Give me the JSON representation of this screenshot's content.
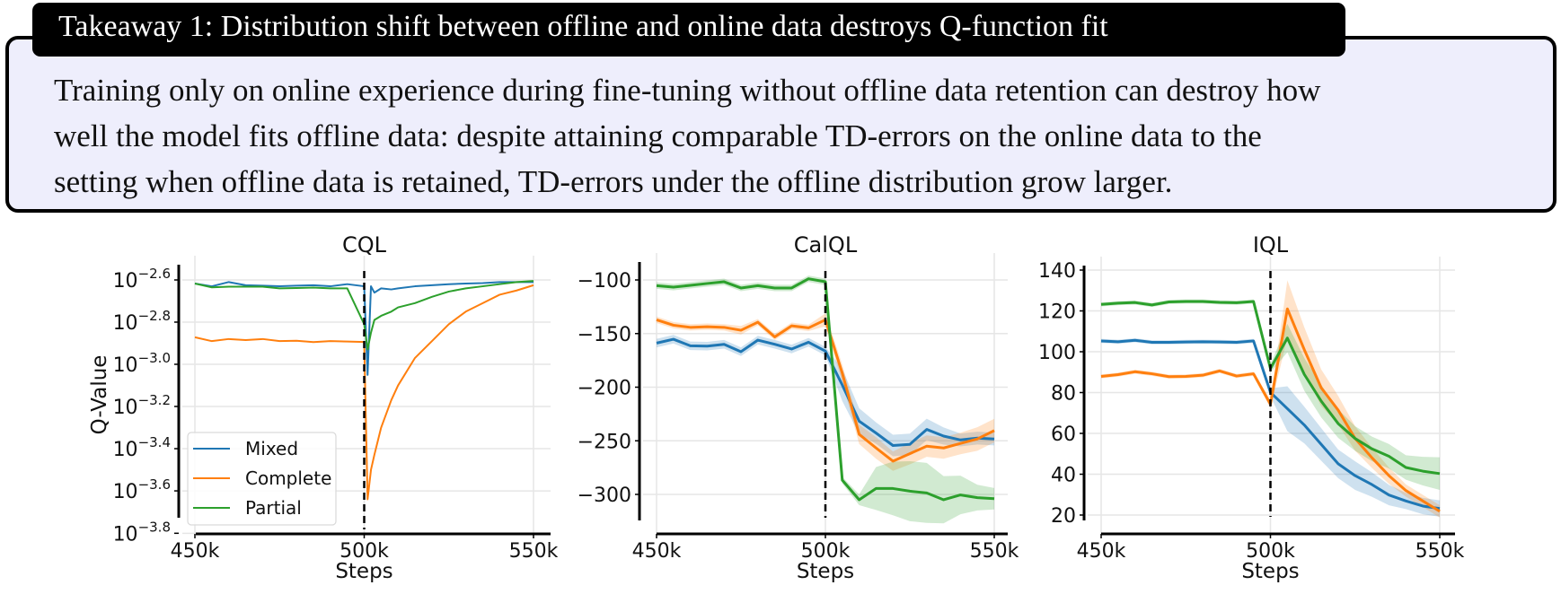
{
  "takeaway": {
    "title": "Takeaway 1: Distribution shift between offline and online data destroys Q-function fit",
    "lines": [
      "Training only on online experience during fine-tuning without offline data retention can destroy how",
      "well the model fits offline data: despite attaining comparable TD-errors on the online data to the",
      "setting when offline data is retained, TD-errors under the offline distribution grow larger."
    ],
    "background": "#eeeefc"
  },
  "colors": {
    "Mixed": "#1f77b4",
    "Complete": "#ff7f0e",
    "Partial": "#2ca02c"
  },
  "chart_data": [
    {
      "type": "line",
      "title": "CQL",
      "xlabel": "Steps",
      "ylabel": "Q-Value",
      "yscale": "log",
      "grid": true,
      "legend": {
        "placement": "lower-left",
        "entries": [
          "Mixed",
          "Complete",
          "Partial"
        ]
      },
      "vline": 500000,
      "xlim": [
        445000,
        555000
      ],
      "ylim": [
        0.000158,
        0.00295
      ],
      "xticks": [
        450000,
        500000,
        550000
      ],
      "xtick_labels": [
        "450k",
        "500k",
        "550k"
      ],
      "yticks": [
        0.002512,
        0.001585,
        0.001,
        0.000631,
        0.000398,
        0.000251,
        0.000158
      ],
      "ytick_labels": [
        {
          "base": "10",
          "exp": "−2.6"
        },
        {
          "base": "10",
          "exp": "−2.8"
        },
        {
          "base": "10",
          "exp": "−3.0"
        },
        {
          "base": "10",
          "exp": "−3.2"
        },
        {
          "base": "10",
          "exp": "−3.4"
        },
        {
          "base": "10",
          "exp": "−3.6"
        },
        {
          "base": "10",
          "exp": "−3.8"
        }
      ],
      "x": [
        450000,
        455000,
        460000,
        465000,
        470000,
        475000,
        480000,
        485000,
        490000,
        495000,
        500000,
        501000,
        502000,
        503000,
        505000,
        508000,
        510000,
        515000,
        520000,
        525000,
        530000,
        535000,
        540000,
        545000,
        550000
      ],
      "series": [
        {
          "name": "Mixed",
          "values": [
            0.002415,
            0.002344,
            0.002455,
            0.002371,
            0.00236,
            0.002344,
            0.00236,
            0.002371,
            0.002344,
            0.002399,
            0.002344,
            0.000891,
            0.002344,
            0.002188,
            0.002291,
            0.002265,
            0.002291,
            0.002344,
            0.002371,
            0.002399,
            0.002415,
            0.002427,
            0.002455,
            0.002455,
            0.002455
          ]
        },
        {
          "name": "Complete",
          "values": [
            0.001343,
            0.001288,
            0.001318,
            0.001303,
            0.001318,
            0.001288,
            0.001294,
            0.001274,
            0.001288,
            0.001282,
            0.001276,
            0.000229,
            0.000316,
            0.000372,
            0.000501,
            0.000676,
            0.000794,
            0.001072,
            0.001288,
            0.001549,
            0.001778,
            0.00195,
            0.002138,
            0.002239,
            0.002371
          ]
        },
        {
          "name": "Partial",
          "values": [
            0.002415,
            0.002317,
            0.002333,
            0.002333,
            0.002333,
            0.002291,
            0.002301,
            0.002312,
            0.002291,
            0.002291,
            0.001549,
            0.001175,
            0.001413,
            0.001622,
            0.001698,
            0.001778,
            0.001862,
            0.00195,
            0.002089,
            0.002213,
            0.002291,
            0.002344,
            0.002399,
            0.002455,
            0.002483
          ]
        }
      ]
    },
    {
      "type": "line",
      "title": "CalQL",
      "xlabel": "Steps",
      "ylabel": "",
      "grid": true,
      "vline": 500000,
      "xlim": [
        445000,
        555000
      ],
      "ylim": [
        -324,
        -84
      ],
      "xticks": [
        450000,
        500000,
        550000
      ],
      "xtick_labels": [
        "450k",
        "500k",
        "550k"
      ],
      "yticks": [
        -100,
        -150,
        -200,
        -250,
        -300
      ],
      "ytick_labels": [
        "−100",
        "−150",
        "−200",
        "−250",
        "−300"
      ],
      "x": [
        450000,
        455000,
        460000,
        465000,
        470000,
        475000,
        480000,
        485000,
        490000,
        495000,
        500000,
        505000,
        510000,
        515000,
        520000,
        525000,
        530000,
        535000,
        540000,
        545000,
        550000
      ],
      "series": [
        {
          "name": "Mixed",
          "values": [
            -158.9,
            -155.3,
            -161.4,
            -161.7,
            -160,
            -166.9,
            -156.1,
            -160,
            -164.4,
            -158.1,
            -166.4,
            -198,
            -231.7,
            -242.8,
            -254.4,
            -253.3,
            -239.4,
            -245.6,
            -249.2,
            -247.5,
            -248.3
          ],
          "band": [
            4,
            4,
            4,
            4,
            4,
            4,
            4,
            4,
            4,
            4,
            4,
            15,
            12,
            10,
            10,
            10,
            10,
            8,
            6,
            6,
            6
          ]
        },
        {
          "name": "Complete",
          "values": [
            -137.2,
            -142.2,
            -144.2,
            -143.6,
            -144.2,
            -146.9,
            -139.4,
            -153.1,
            -142.8,
            -144.7,
            -137.2,
            -187,
            -244,
            -256.7,
            -269,
            -262,
            -255,
            -256.7,
            -252.5,
            -248.3,
            -240.5
          ],
          "band": [
            3,
            3,
            3,
            3,
            3,
            4,
            3,
            3,
            3,
            3,
            6,
            8,
            9,
            10,
            9,
            10,
            10,
            10,
            10,
            11,
            11
          ]
        },
        {
          "name": "Partial",
          "values": [
            -105.3,
            -106.7,
            -105,
            -103.3,
            -101.7,
            -107.5,
            -105.3,
            -107.5,
            -107.5,
            -98.9,
            -101.7,
            -286.7,
            -305,
            -294.5,
            -294.5,
            -297,
            -298.6,
            -305,
            -300.5,
            -303,
            -304
          ],
          "band": [
            3,
            3,
            3,
            3,
            3,
            3,
            3,
            3,
            3,
            3,
            3,
            3,
            5,
            20,
            25,
            28,
            28,
            22,
            18,
            12,
            10
          ]
        }
      ]
    },
    {
      "type": "line",
      "title": "IQL",
      "xlabel": "Steps",
      "ylabel": "",
      "grid": true,
      "vline": 500000,
      "xlim": [
        445000,
        555000
      ],
      "ylim": [
        17,
        144
      ],
      "xticks": [
        450000,
        500000,
        550000
      ],
      "xtick_labels": [
        "450k",
        "500k",
        "550k"
      ],
      "yticks": [
        140,
        120,
        100,
        80,
        60,
        40,
        20
      ],
      "ytick_labels": [
        "140",
        "120",
        "100",
        "80",
        "60",
        "40",
        "20"
      ],
      "x": [
        450000,
        455000,
        460000,
        465000,
        470000,
        475000,
        480000,
        485000,
        490000,
        495000,
        500000,
        505000,
        510000,
        515000,
        520000,
        525000,
        530000,
        535000,
        540000,
        545000,
        550000
      ],
      "series": [
        {
          "name": "Mixed",
          "values": [
            105.3,
            104.9,
            105.6,
            104.6,
            104.6,
            104.8,
            104.9,
            104.8,
            104.6,
            105.3,
            80.1,
            72.1,
            64.1,
            54.6,
            45.1,
            39.3,
            34.9,
            29.8,
            26.9,
            24.4,
            23.2
          ],
          "band": [
            1,
            1,
            1,
            1,
            1,
            1,
            1,
            1,
            1,
            1,
            2,
            11,
            9,
            8,
            7,
            7,
            6,
            5,
            4,
            4,
            4
          ]
        },
        {
          "name": "Complete",
          "values": [
            87.9,
            88.8,
            90.2,
            89.2,
            87.8,
            87.9,
            88.5,
            90.6,
            88.1,
            89.2,
            74.3,
            121,
            101,
            82.3,
            71.4,
            57.5,
            48,
            39.3,
            32,
            26.9,
            21.8
          ],
          "band": [
            1,
            1,
            1,
            1,
            1,
            1,
            1,
            1,
            1,
            1,
            2,
            14,
            11,
            9,
            7,
            6,
            5,
            4,
            3,
            3,
            3
          ]
        },
        {
          "name": "Partial",
          "values": [
            123.2,
            123.8,
            124.1,
            122.9,
            124.4,
            124.6,
            124.6,
            124.2,
            124,
            124.6,
            91.8,
            106.7,
            88.9,
            75.8,
            64.8,
            57.5,
            52.4,
            48.8,
            43.3,
            41.5,
            40.3
          ],
          "band": [
            1,
            1,
            1,
            1,
            1,
            1,
            1,
            1,
            1,
            1,
            2,
            7,
            8,
            8,
            7,
            6,
            6,
            6,
            6,
            7,
            8
          ]
        }
      ]
    }
  ]
}
